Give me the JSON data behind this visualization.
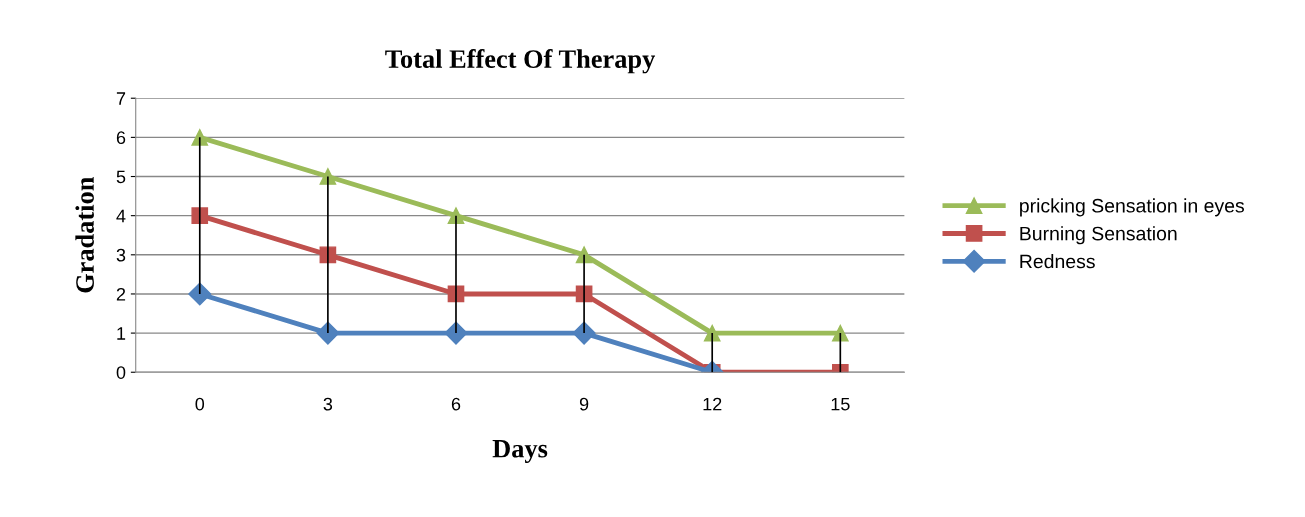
{
  "chart_data": {
    "type": "line",
    "title": "Total Effect Of Therapy",
    "xlabel": "Days",
    "ylabel": "Gradation",
    "categories": [
      "0",
      "3",
      "6",
      "9",
      "12",
      "15"
    ],
    "series": [
      {
        "name": "pricking Sensation in eyes",
        "color": "#9bbb59",
        "marker": "triangle",
        "values": [
          6,
          5,
          4,
          3,
          1,
          1
        ],
        "errors": [
          [
            2,
            6
          ],
          [
            1,
            5
          ],
          [
            1,
            4
          ],
          [
            1,
            3
          ],
          [
            0,
            1
          ],
          [
            0,
            1
          ]
        ]
      },
      {
        "name": "Burning Sensation",
        "color": "#c0504d",
        "marker": "square",
        "values": [
          4,
          3,
          2,
          2,
          0,
          0
        ]
      },
      {
        "name": "Redness",
        "color": "#4f81bd",
        "marker": "diamond",
        "values": [
          2,
          1,
          1,
          1,
          0,
          null
        ]
      }
    ],
    "ylim": [
      0,
      7
    ],
    "yticks": [
      0,
      1,
      2,
      3,
      4,
      5,
      6,
      7
    ],
    "grid": "y",
    "legend": "right"
  }
}
